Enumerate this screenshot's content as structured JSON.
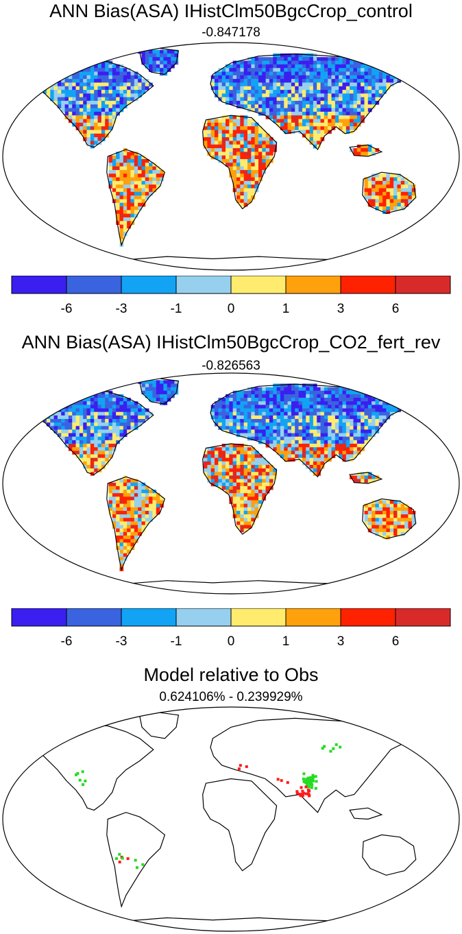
{
  "panels": [
    {
      "title": "ANN Bias(ASA) IHistClm50BgcCrop_control",
      "subtitle": "-0.847178",
      "map": "bias",
      "colorbar": {
        "colors": [
          "#3a1ff0",
          "#3a63e0",
          "#12a3f5",
          "#96d0ee",
          "#ffec6e",
          "#ffa10c",
          "#ff2200",
          "#d92a2a"
        ],
        "tick_labels": [
          "-6",
          "-3",
          "-1",
          "0",
          "1",
          "3",
          "6"
        ]
      }
    },
    {
      "title": "ANN Bias(ASA) IHistClm50BgcCrop_CO2_fert_rev",
      "subtitle": "-0.826563",
      "map": "bias",
      "colorbar": {
        "colors": [
          "#3a1ff0",
          "#3a63e0",
          "#12a3f5",
          "#96d0ee",
          "#ffec6e",
          "#ffa10c",
          "#ff2200",
          "#d92a2a"
        ],
        "tick_labels": [
          "-6",
          "-3",
          "-1",
          "0",
          "1",
          "3",
          "6"
        ]
      }
    },
    {
      "title": "Model relative to Obs",
      "subtitle": "0.624106% - 0.239929%",
      "map": "relative",
      "marker_colors": {
        "model": "#ff1a1a",
        "obs": "#22dd22"
      }
    }
  ]
}
